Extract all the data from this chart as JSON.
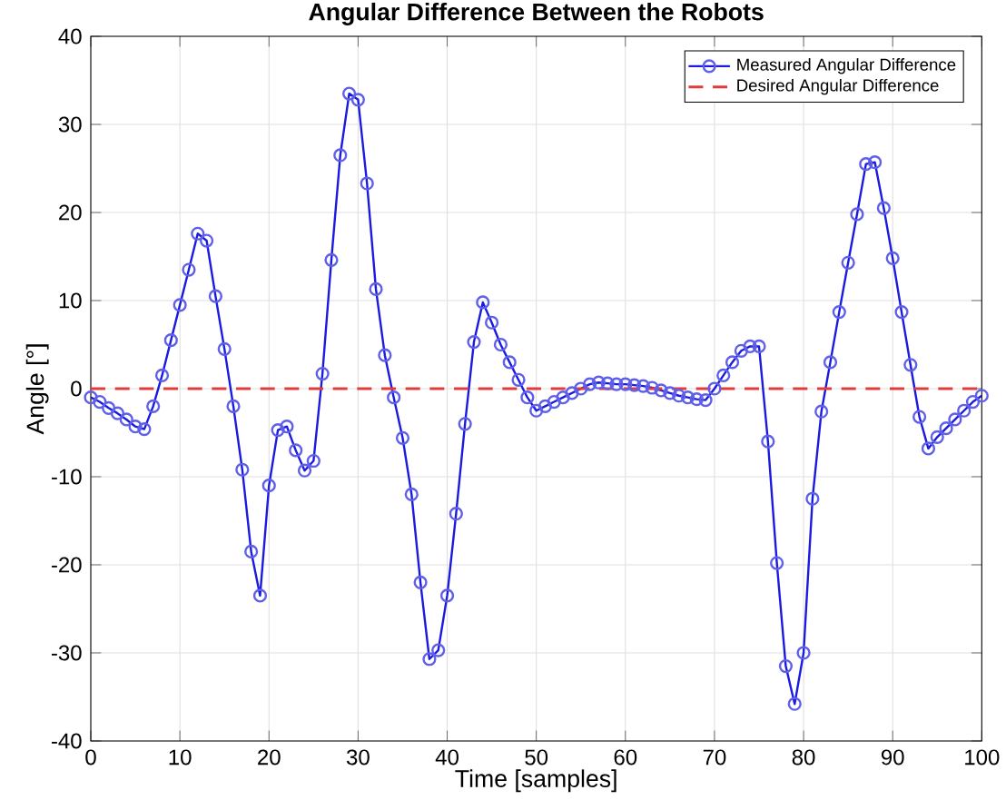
{
  "chart_data": {
    "type": "line",
    "title": "Angular Difference Between the Robots",
    "xlabel": "Time [samples]",
    "ylabel": "Angle [°]",
    "x": [
      0,
      1,
      2,
      3,
      4,
      5,
      6,
      7,
      8,
      9,
      10,
      11,
      12,
      13,
      14,
      15,
      16,
      17,
      18,
      19,
      20,
      21,
      22,
      23,
      24,
      25,
      26,
      27,
      28,
      29,
      30,
      31,
      32,
      33,
      34,
      35,
      36,
      37,
      38,
      39,
      40,
      41,
      42,
      43,
      44,
      45,
      46,
      47,
      48,
      49,
      50,
      51,
      52,
      53,
      54,
      55,
      56,
      57,
      58,
      59,
      60,
      61,
      62,
      63,
      64,
      65,
      66,
      67,
      68,
      69,
      70,
      71,
      72,
      73,
      74,
      75,
      76,
      77,
      78,
      79,
      80,
      81,
      82,
      83,
      84,
      85,
      86,
      87,
      88,
      89,
      90,
      91,
      92,
      93,
      94,
      95,
      96,
      97,
      98,
      99,
      100
    ],
    "series": [
      {
        "name": "Measured Angular Difference",
        "color": "#1a1ae0",
        "marker": "circle",
        "line_style": "solid",
        "values": [
          -1,
          -1.5,
          -2.2,
          -2.8,
          -3.5,
          -4.3,
          -4.6,
          -2,
          1.5,
          5.5,
          9.5,
          13.5,
          17.6,
          16.8,
          10.5,
          4.5,
          -2,
          -9.2,
          -18.5,
          -23.5,
          -11,
          -4.7,
          -4.3,
          -7,
          -9.3,
          -8.2,
          1.7,
          14.6,
          26.5,
          33.5,
          32.8,
          23.3,
          11.3,
          3.8,
          -1,
          -5.6,
          -12,
          -22,
          -30.7,
          -29.7,
          -23.5,
          -14.2,
          -4,
          5.3,
          9.8,
          7.5,
          5,
          3,
          1,
          -1,
          -2.5,
          -2,
          -1.5,
          -1,
          -0.5,
          0,
          0.5,
          0.7,
          0.6,
          0.5,
          0.5,
          0.4,
          0.3,
          0.1,
          -0.2,
          -0.5,
          -0.8,
          -1,
          -1.2,
          -1.3,
          0,
          1.5,
          3,
          4.3,
          4.8,
          4.8,
          -6,
          -19.8,
          -31.5,
          -35.8,
          -30,
          -12.5,
          -2.6,
          3,
          8.7,
          14.3,
          19.8,
          25.5,
          25.7,
          20.5,
          14.8,
          8.7,
          2.7,
          -3.2,
          -6.8,
          -5.5,
          -4.5,
          -3.5,
          -2.5,
          -1.5,
          -0.8
        ]
      }
    ],
    "ref_lines": [
      {
        "axis": "y",
        "value": 0,
        "label": "Desired Angular Difference",
        "color": "#e03c3c",
        "line_style": "dashed"
      }
    ],
    "xlim": [
      0,
      100
    ],
    "ylim": [
      -40,
      40
    ],
    "xticks": [
      0,
      10,
      20,
      30,
      40,
      50,
      60,
      70,
      80,
      90,
      100
    ],
    "yticks": [
      -40,
      -30,
      -20,
      -10,
      0,
      10,
      20,
      30,
      40
    ],
    "grid": true,
    "legend": "top right"
  }
}
